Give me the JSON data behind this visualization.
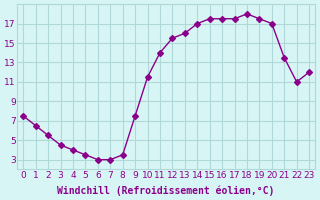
{
  "x": [
    0,
    1,
    2,
    3,
    4,
    5,
    6,
    7,
    8,
    9,
    10,
    11,
    12,
    13,
    14,
    15,
    16,
    17,
    18,
    19,
    20,
    21,
    22,
    23
  ],
  "y": [
    7.5,
    6.5,
    5.5,
    4.5,
    4.0,
    3.5,
    3.0,
    3.0,
    3.5,
    7.5,
    11.5,
    14.0,
    15.5,
    16.0,
    17.0,
    17.5,
    17.5,
    17.5,
    18.0,
    17.5,
    17.0,
    13.5,
    11.0,
    12.0
  ],
  "line_color": "#8B008B",
  "marker": "D",
  "marker_size": 3,
  "bg_color": "#d8f5f5",
  "grid_color": "#b0d8d8",
  "xlabel": "Windchill (Refroidissement éolien,°C)",
  "ylabel": "",
  "yticks": [
    3,
    5,
    7,
    9,
    11,
    13,
    15,
    17
  ],
  "xticks": [
    0,
    1,
    2,
    3,
    4,
    5,
    6,
    7,
    8,
    9,
    10,
    11,
    12,
    13,
    14,
    15,
    16,
    17,
    18,
    19,
    20,
    21,
    22,
    23
  ],
  "ylim": [
    2.0,
    19.0
  ],
  "xlim": [
    -0.5,
    23.5
  ],
  "title_color": "#8B008B",
  "tick_color": "#8B008B",
  "label_color": "#8B008B",
  "font_size_xlabel": 7,
  "font_size_ticks": 6.5
}
